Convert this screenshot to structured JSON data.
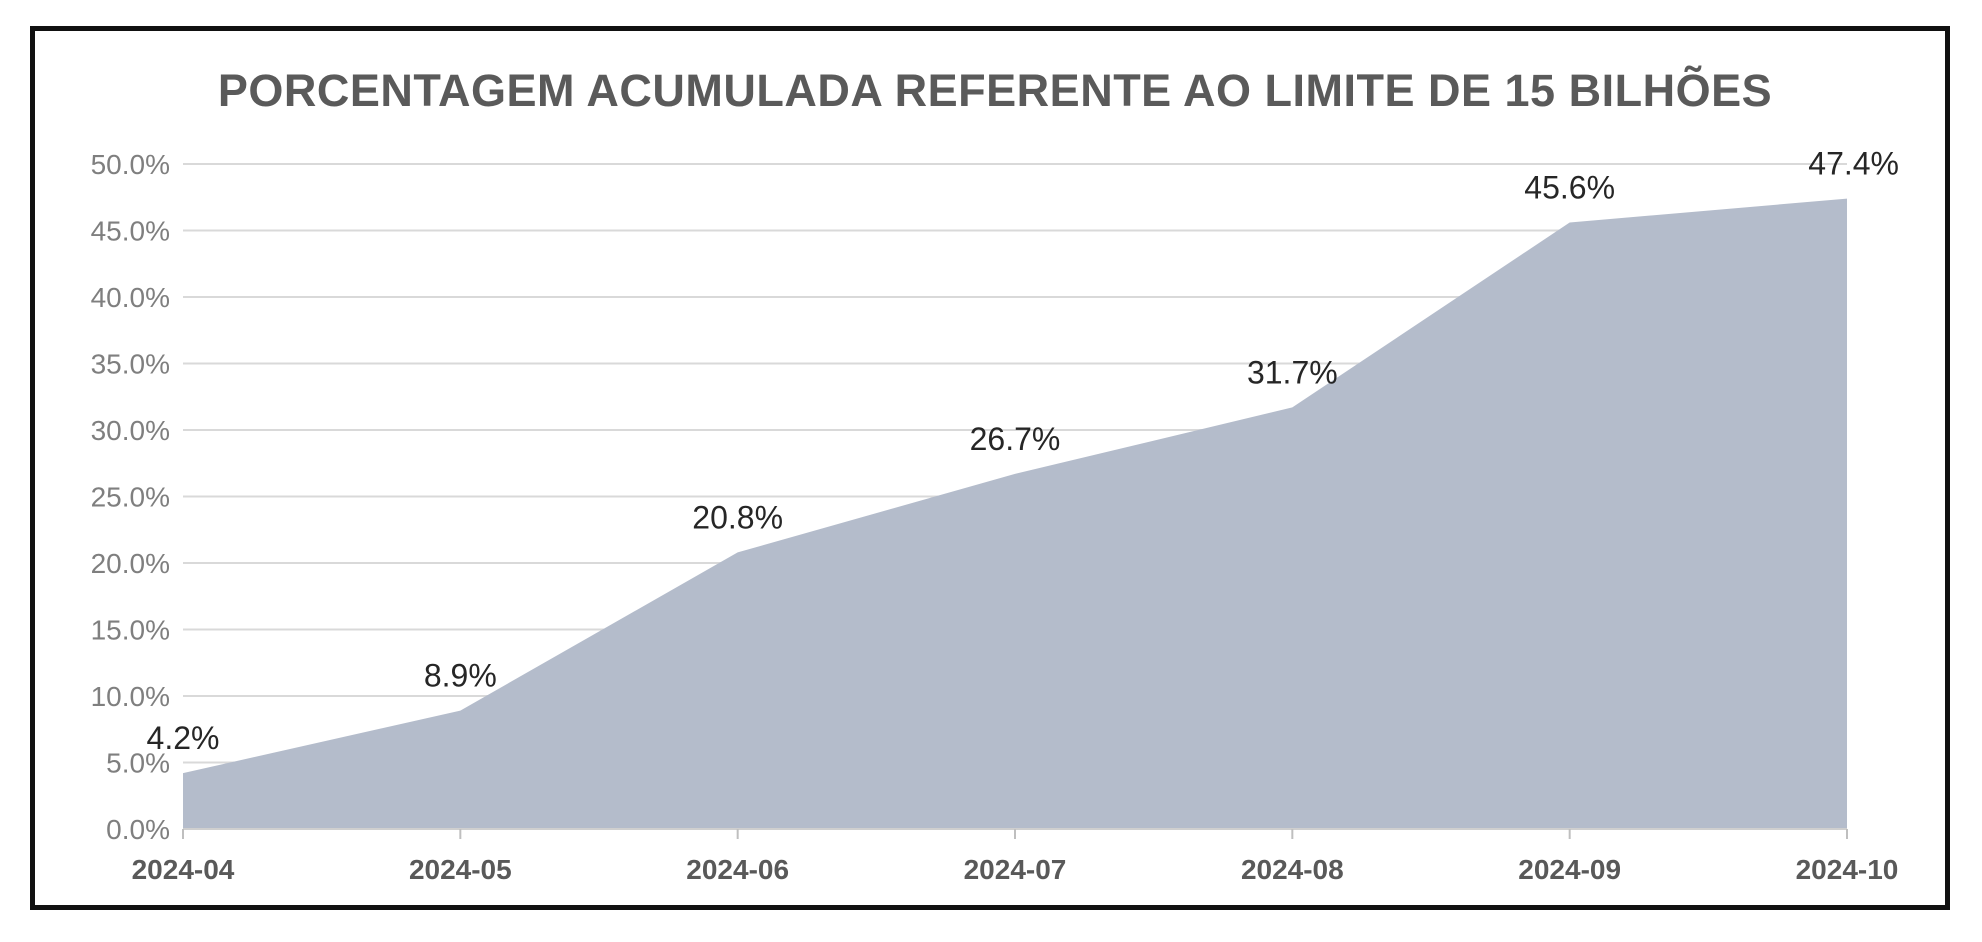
{
  "chart_data": {
    "type": "area",
    "title": "PORCENTAGEM ACUMULADA REFERENTE AO LIMITE DE 15 BILHÕES",
    "xlabel": "",
    "ylabel": "",
    "categories": [
      "2024-04",
      "2024-05",
      "2024-06",
      "2024-07",
      "2024-08",
      "2024-09",
      "2024-10"
    ],
    "values": [
      4.2,
      8.9,
      20.8,
      26.7,
      31.7,
      45.6,
      47.4
    ],
    "data_labels": [
      "4.2%",
      "8.9%",
      "20.8%",
      "26.7%",
      "31.7%",
      "45.6%",
      "47.4%"
    ],
    "ylim": [
      0,
      50
    ],
    "yticks": [
      0,
      5,
      10,
      15,
      20,
      25,
      30,
      35,
      40,
      45,
      50
    ],
    "ytick_labels": [
      "0.0%",
      "5.0%",
      "10.0%",
      "15.0%",
      "20.0%",
      "25.0%",
      "30.0%",
      "35.0%",
      "40.0%",
      "45.0%",
      "50.0%"
    ],
    "grid": true,
    "legend": "none",
    "colors": {
      "area_fill": "#b4bccb",
      "gridline": "#d9d9d9",
      "tick_text": "#7f7f7f",
      "xtick_text": "#595959",
      "data_label_text": "#262626",
      "title_text": "#595959",
      "border": "#111111"
    }
  }
}
